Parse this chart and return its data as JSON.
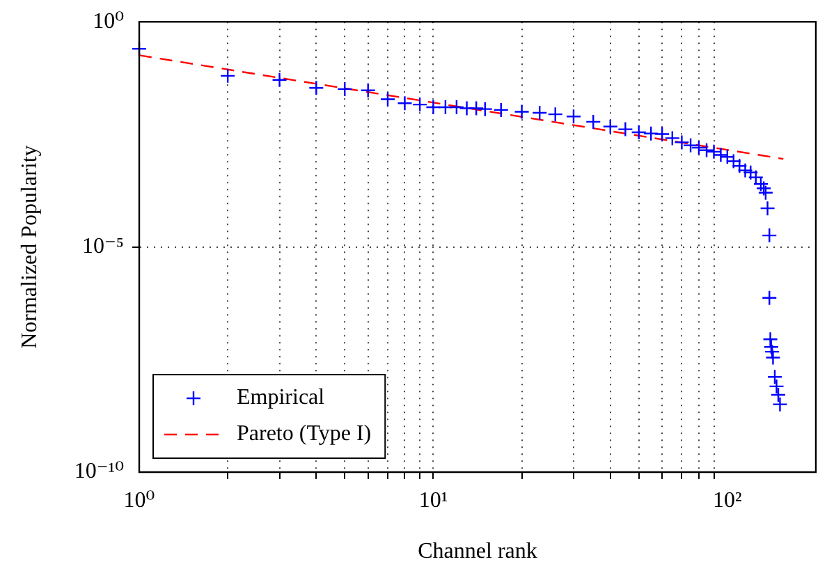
{
  "chart_data": {
    "type": "scatter",
    "xlabel": "Channel rank",
    "ylabel": "Normalized Popularity",
    "log": "xy",
    "grid": true,
    "legend": "bottom left",
    "xlim": [
      1,
      200
    ],
    "xticks": [
      {
        "value": 1,
        "label": "10⁰"
      },
      {
        "value": 2,
        "label": null
      },
      {
        "value": 3,
        "label": null
      },
      {
        "value": 4,
        "label": null
      },
      {
        "value": 5,
        "label": null
      },
      {
        "value": 6,
        "label": null
      },
      {
        "value": 7,
        "label": null
      },
      {
        "value": 8,
        "label": null
      },
      {
        "value": 9,
        "label": null
      },
      {
        "value": 10,
        "label": "10¹"
      },
      {
        "value": 20,
        "label": null
      },
      {
        "value": 30,
        "label": null
      },
      {
        "value": 40,
        "label": null
      },
      {
        "value": 50,
        "label": null
      },
      {
        "value": 60,
        "label": null
      },
      {
        "value": 70,
        "label": null
      },
      {
        "value": 80,
        "label": null
      },
      {
        "value": 90,
        "label": null
      },
      {
        "value": 100,
        "label": "10²"
      }
    ],
    "ylim": [
      1e-10,
      1
    ],
    "yticks": [
      {
        "value": 1e-10,
        "label": "10⁻¹⁰"
      },
      {
        "value": 1e-05,
        "label": "10⁻⁵"
      },
      {
        "value": 1,
        "label": "10⁰"
      }
    ],
    "series": [
      {
        "name": "Empirical",
        "marker": "cross",
        "color": "#0000ff",
        "x": [
          1,
          2,
          3,
          4,
          5,
          6,
          7,
          8,
          9,
          10,
          11,
          12,
          13,
          14,
          15,
          17,
          20,
          23,
          26,
          30,
          35,
          40,
          45,
          50,
          55,
          60,
          65,
          70,
          75,
          80,
          85,
          90,
          95,
          100,
          105,
          110,
          115,
          120,
          125,
          130,
          133,
          135,
          137,
          139,
          139,
          140,
          141,
          142,
          143,
          145,
          147,
          149,
          151
        ],
        "values": [
          0.25,
          0.063,
          0.051,
          0.034,
          0.032,
          0.03,
          0.019,
          0.0155,
          0.0145,
          0.0126,
          0.0126,
          0.0126,
          0.012,
          0.012,
          0.0115,
          0.011,
          0.01,
          0.0095,
          0.0088,
          0.0079,
          0.006,
          0.0047,
          0.0041,
          0.0035,
          0.0033,
          0.0032,
          0.0026,
          0.0021,
          0.0018,
          0.0016,
          0.0014,
          0.0013,
          0.0011,
          0.001,
          0.0008,
          0.00063,
          0.0005,
          0.00045,
          0.00035,
          0.00025,
          0.0002,
          0.00016,
          7.2e-05,
          1.8e-05,
          7.4e-07,
          8.9e-08,
          6e-08,
          4.7e-08,
          3.5e-08,
          1.3e-08,
          8e-09,
          5.2e-09,
          3.2e-09
        ]
      },
      {
        "name": "Pareto (Type I)",
        "type": "line",
        "marker": "none",
        "line_style": "dashed",
        "color": "#ff0000",
        "x": [
          1,
          155
        ],
        "values": [
          0.18,
          0.0009
        ]
      }
    ]
  }
}
